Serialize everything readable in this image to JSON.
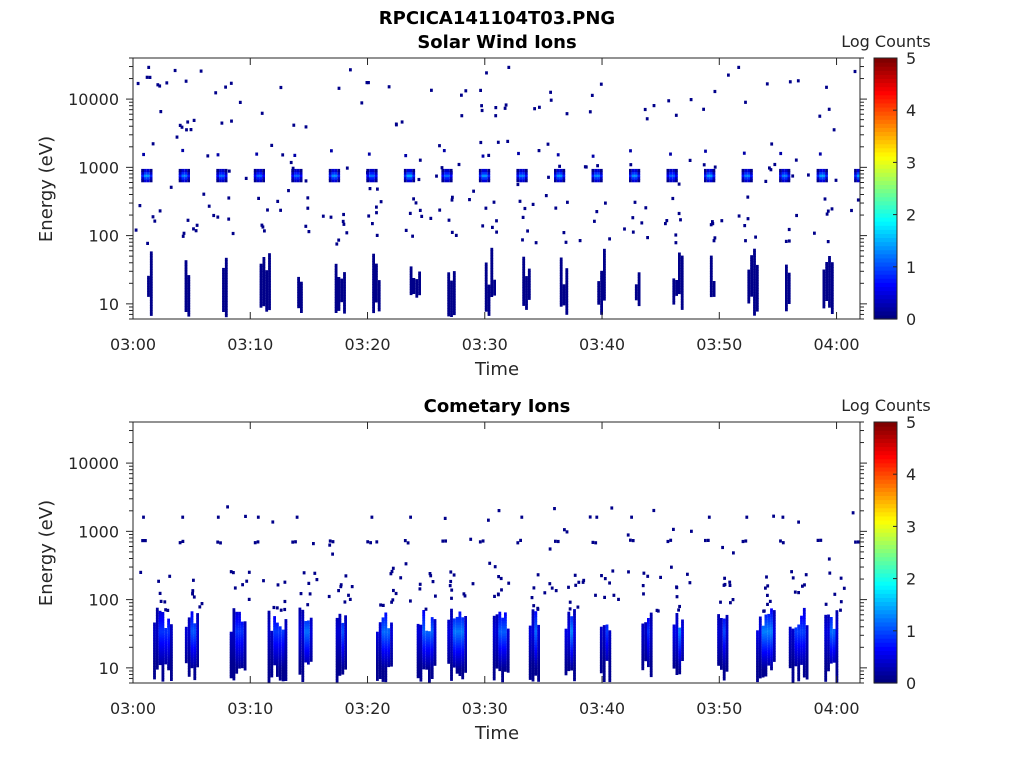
{
  "figure_title": "RPCICA141104T03.PNG",
  "chart_data": [
    {
      "type": "heatmap",
      "title": "Solar Wind Ions",
      "xlabel": "Time",
      "ylabel": "Energy (eV)",
      "yscale": "log",
      "ylim": [
        6,
        40000
      ],
      "xlim": [
        "03:00",
        "04:02"
      ],
      "xticks": [
        "03:00",
        "03:10",
        "03:20",
        "03:30",
        "03:40",
        "03:50",
        "04:00"
      ],
      "yticks": [
        "10",
        "100",
        "1000",
        "10000"
      ],
      "colorbar": {
        "label": "Log Counts",
        "ticks": [
          "0",
          "1",
          "2",
          "3",
          "4",
          "5"
        ],
        "range": [
          0,
          5
        ],
        "colormap": "jet"
      },
      "scan_period_min": 3.2,
      "first_scan_min": 0.7,
      "features": [
        {
          "name": "solar wind peak",
          "energy_eV": 800,
          "peak_log_counts": 1.6
        },
        {
          "name": "upper band",
          "energy_eV": 1700,
          "peak_log_counts": 0.3
        },
        {
          "name": "low energy bursts",
          "energy_range_eV": [
            8,
            60
          ],
          "peak_log_counts": 0.1
        }
      ]
    },
    {
      "type": "heatmap",
      "title": "Cometary Ions",
      "xlabel": "Time",
      "ylabel": "Energy (eV)",
      "yscale": "log",
      "ylim": [
        6,
        40000
      ],
      "xlim": [
        "03:00",
        "04:02"
      ],
      "xticks": [
        "03:00",
        "03:10",
        "03:20",
        "03:30",
        "03:40",
        "03:50",
        "04:00"
      ],
      "yticks": [
        "10",
        "100",
        "1000",
        "10000"
      ],
      "colorbar": {
        "label": "Log Counts",
        "ticks": [
          "0",
          "1",
          "2",
          "3",
          "4",
          "5"
        ],
        "range": [
          0,
          5
        ],
        "colormap": "jet"
      },
      "scan_period_min": 3.2,
      "first_scan_min": 0.7,
      "features": [
        {
          "name": "solar wind leakage",
          "energy_eV": 750,
          "peak_log_counts": 0.1
        },
        {
          "name": "upper band",
          "energy_eV": 1700,
          "peak_log_counts": 0.1
        },
        {
          "name": "cometary ion columns",
          "energy_range_eV": [
            7,
            80
          ],
          "peak_log_counts": 1.3
        }
      ]
    }
  ]
}
